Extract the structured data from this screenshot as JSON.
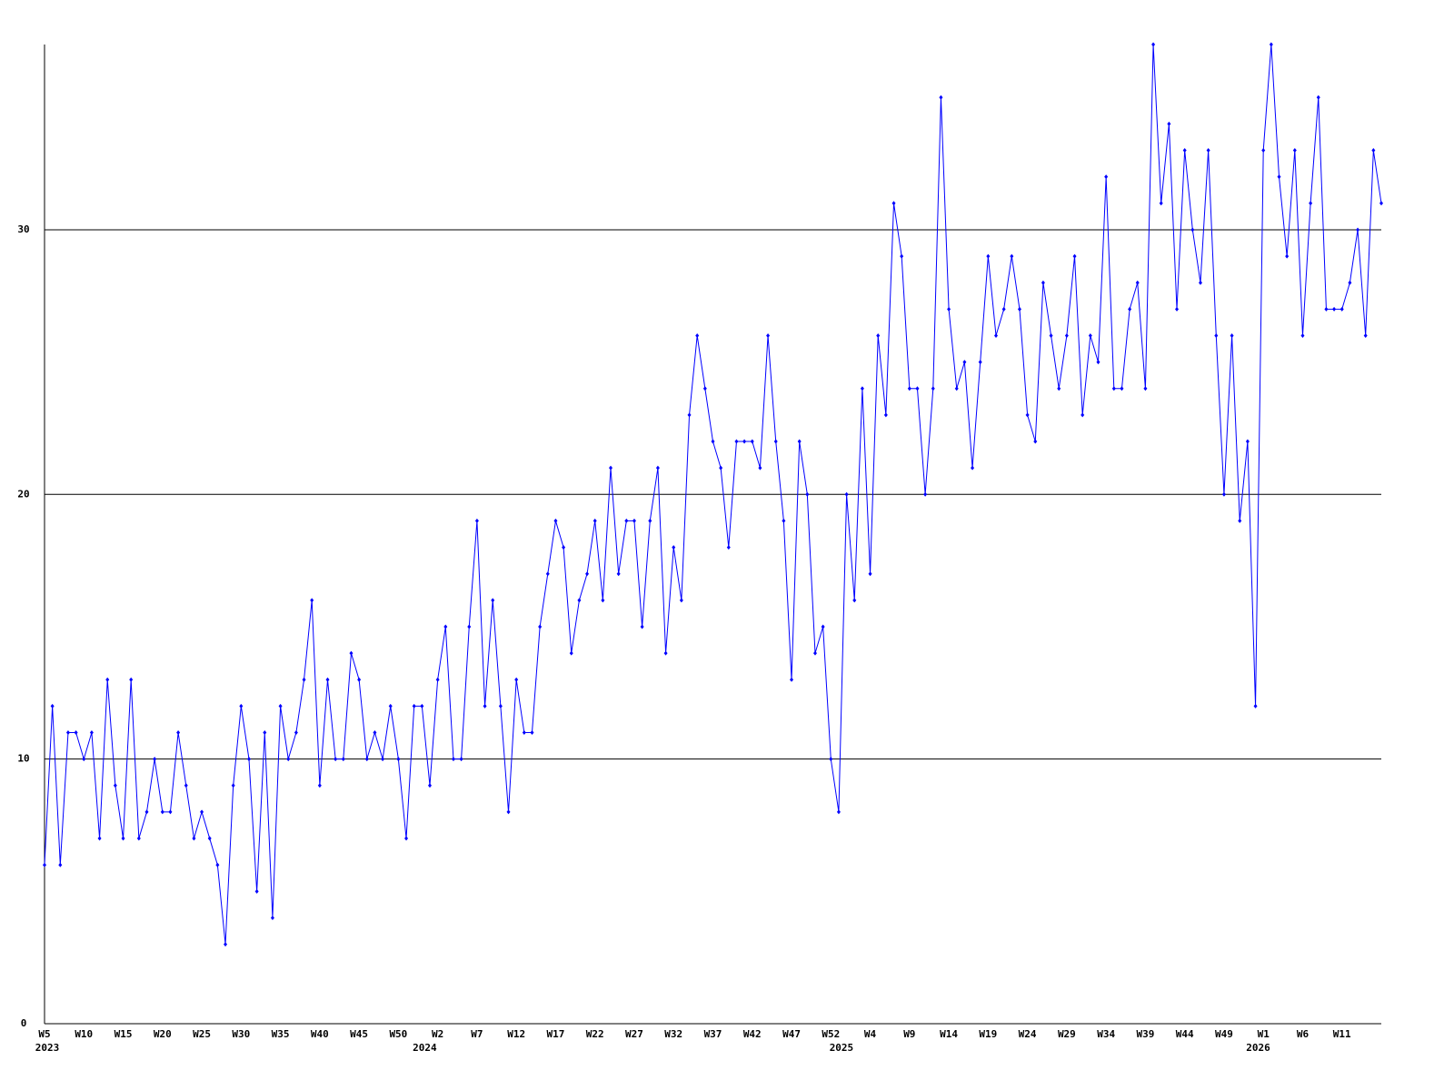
{
  "chart_data": {
    "type": "line",
    "categories": [
      "W5",
      null,
      null,
      null,
      null,
      "W10",
      null,
      null,
      null,
      null,
      "W15",
      null,
      null,
      null,
      null,
      "W20",
      null,
      null,
      null,
      null,
      "W25",
      null,
      null,
      null,
      null,
      "W30",
      null,
      null,
      null,
      null,
      "W35",
      null,
      null,
      null,
      null,
      "W40",
      null,
      null,
      null,
      null,
      "W45",
      null,
      null,
      null,
      null,
      "W50",
      null,
      null,
      null,
      null,
      "W2",
      null,
      null,
      null,
      null,
      "W7",
      null,
      null,
      null,
      null,
      "W12",
      null,
      null,
      null,
      null,
      "W17",
      null,
      null,
      null,
      null,
      "W22",
      null,
      null,
      null,
      null,
      "W27",
      null,
      null,
      null,
      null,
      "W32",
      null,
      null,
      null,
      null,
      "W37",
      null,
      null,
      null,
      null,
      "W42",
      null,
      null,
      null,
      null,
      "W47",
      null,
      null,
      null,
      null,
      "W52",
      null,
      null,
      null,
      null,
      "W4",
      null,
      null,
      null,
      null,
      "W9",
      null,
      null,
      null,
      null,
      "W14",
      null,
      null,
      null,
      null,
      "W19",
      null,
      null,
      null,
      null,
      "W24",
      null,
      null,
      null,
      null,
      "W29",
      null,
      null,
      null,
      null,
      "W34",
      null,
      null,
      null,
      null,
      "W39",
      null,
      null,
      null,
      null,
      "W44",
      null,
      null,
      null,
      null,
      "W49",
      null,
      null,
      null,
      null,
      "W1",
      null,
      null,
      null,
      null,
      "W6",
      null,
      null,
      null,
      null,
      "W11",
      null,
      null,
      null,
      null,
      null
    ],
    "years": [
      "2023",
      null,
      null,
      null,
      null,
      null,
      null,
      null,
      null,
      null,
      null,
      null,
      null,
      null,
      null,
      null,
      null,
      null,
      null,
      null,
      null,
      null,
      null,
      null,
      null,
      null,
      null,
      null,
      null,
      null,
      null,
      null,
      null,
      null,
      null,
      null,
      null,
      null,
      null,
      null,
      null,
      null,
      null,
      null,
      null,
      null,
      null,
      null,
      "2024",
      null,
      null,
      null,
      null,
      null,
      null,
      null,
      null,
      null,
      null,
      null,
      null,
      null,
      null,
      null,
      null,
      null,
      null,
      null,
      null,
      null,
      null,
      null,
      null,
      null,
      null,
      null,
      null,
      null,
      null,
      null,
      null,
      null,
      null,
      null,
      null,
      null,
      null,
      null,
      null,
      null,
      null,
      null,
      null,
      null,
      null,
      null,
      null,
      null,
      null,
      null,
      null,
      "2025",
      null,
      null,
      null,
      null,
      null,
      null,
      null,
      null,
      null,
      null,
      null,
      null,
      null,
      null,
      null,
      null,
      null,
      null,
      null,
      null,
      null,
      null,
      null,
      null,
      null,
      null,
      null,
      null,
      null,
      null,
      null,
      null,
      null,
      null,
      null,
      null,
      null,
      null,
      null,
      null,
      null,
      null,
      null,
      null,
      null,
      null,
      null,
      null,
      null,
      null,
      null,
      null,
      "2026",
      null,
      null,
      null,
      null,
      null,
      null,
      null,
      null,
      null,
      null,
      null,
      null,
      null,
      null,
      null,
      null
    ],
    "values": [
      6,
      12,
      6,
      11,
      11,
      10,
      11,
      7,
      13,
      9,
      7,
      13,
      7,
      8,
      10,
      8,
      8,
      11,
      9,
      7,
      8,
      7,
      6,
      3,
      9,
      12,
      10,
      5,
      11,
      4,
      12,
      10,
      11,
      13,
      16,
      9,
      13,
      10,
      10,
      14,
      13,
      10,
      11,
      10,
      12,
      10,
      7,
      12,
      12,
      9,
      13,
      15,
      10,
      10,
      15,
      19,
      12,
      16,
      12,
      8,
      13,
      11,
      11,
      15,
      17,
      19,
      18,
      14,
      16,
      17,
      19,
      16,
      21,
      17,
      19,
      19,
      15,
      19,
      21,
      14,
      18,
      16,
      23,
      26,
      24,
      22,
      21,
      18,
      22,
      22,
      22,
      21,
      26,
      22,
      19,
      13,
      22,
      20,
      14,
      15,
      10,
      8,
      20,
      16,
      24,
      17,
      26,
      23,
      31,
      29,
      24,
      24,
      20,
      24,
      35,
      27,
      24,
      25,
      21,
      25,
      29,
      26,
      27,
      29,
      27,
      23,
      22,
      28,
      26,
      24,
      26,
      29,
      23,
      26,
      25,
      32,
      24,
      24,
      27,
      28,
      24,
      37,
      31,
      34,
      27,
      33,
      30,
      28,
      33,
      26,
      20,
      26,
      19,
      22,
      12,
      33,
      37,
      32,
      29,
      33,
      26,
      31,
      35,
      27,
      27,
      27,
      28,
      30,
      26,
      33,
      31
    ],
    "color": "#0000ff",
    "ylim": [
      0,
      37
    ],
    "yticks": [
      0,
      10,
      20,
      30
    ],
    "grid": true
  }
}
